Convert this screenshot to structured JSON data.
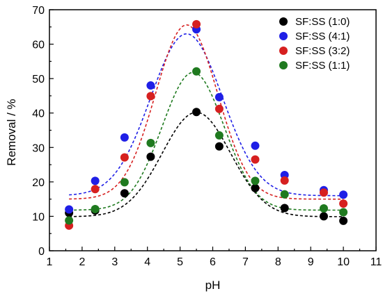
{
  "chart_data": {
    "type": "scatter",
    "xlabel": "pH",
    "ylabel": "Removal / %",
    "xlim": [
      1,
      11
    ],
    "ylim": [
      0,
      70
    ],
    "x_ticks": [
      "1",
      "2",
      "3",
      "4",
      "5",
      "6",
      "7",
      "8",
      "9",
      "10",
      "11"
    ],
    "y_ticks": [
      "0",
      "10",
      "20",
      "30",
      "40",
      "50",
      "60",
      "70"
    ],
    "legend_position": "top-right",
    "grid": false,
    "x": [
      1.6,
      2.4,
      3.3,
      4.1,
      5.5,
      6.2,
      7.3,
      8.2,
      9.4,
      10.0
    ],
    "series": [
      {
        "name": "SF:SS (1:0)",
        "color": "#000000",
        "values": [
          11.0,
          11.7,
          16.7,
          27.3,
          40.3,
          30.3,
          18.2,
          12.4,
          10.0,
          8.7
        ],
        "fit": {
          "y0": 9.9,
          "A": 30.3,
          "xc": 5.5,
          "w": 1.05
        }
      },
      {
        "name": "SF:SS (4:1)",
        "color": "#1f1fe6",
        "values": [
          12.0,
          20.3,
          32.9,
          48.0,
          64.3,
          44.6,
          30.5,
          22.0,
          17.6,
          16.3
        ],
        "fit": {
          "y0": 16.0,
          "A": 47.0,
          "xc": 5.2,
          "w": 1.1
        }
      },
      {
        "name": "SF:SS (3:2)",
        "color": "#d62020",
        "values": [
          7.3,
          17.9,
          27.1,
          44.9,
          65.8,
          41.2,
          26.5,
          20.4,
          16.9,
          13.7
        ],
        "fit": {
          "y0": 15.0,
          "A": 50.6,
          "xc": 5.2,
          "w": 0.95
        }
      },
      {
        "name": "SF:SS (1:1)",
        "color": "#1f7a1f",
        "values": [
          8.8,
          12.1,
          19.9,
          31.3,
          52.1,
          33.5,
          20.3,
          16.4,
          12.3,
          11.2
        ],
        "fit": {
          "y0": 11.8,
          "A": 40.0,
          "xc": 5.4,
          "w": 0.95
        }
      }
    ]
  }
}
